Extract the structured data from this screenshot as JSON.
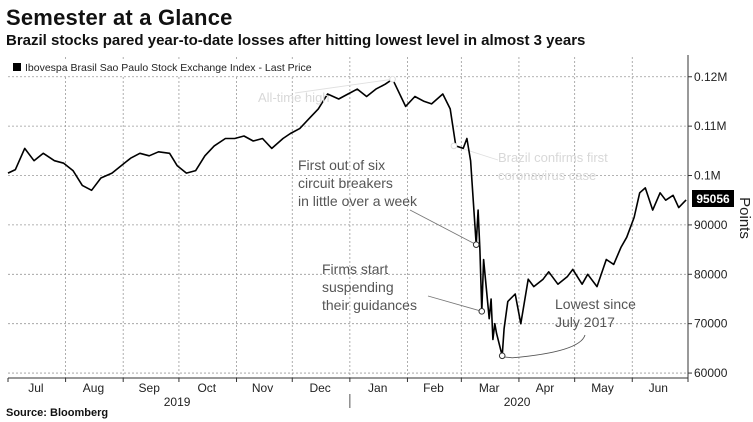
{
  "header": {
    "title": "Semester at a Glance",
    "subtitle": "Brazil stocks pared year-to-date losses after hitting lowest level in almost 3 years"
  },
  "footer": {
    "source": "Source: Bloomberg"
  },
  "chart_data": {
    "type": "line",
    "grid": true,
    "legend_position": "top-left",
    "series": [
      {
        "name": "Ibovespa Brasil Sao Paulo Stock Exchange Index - Last Price",
        "color": "#000000",
        "x": [
          "2019-07-01",
          "2019-07-05",
          "2019-07-10",
          "2019-07-15",
          "2019-07-20",
          "2019-07-26",
          "2019-07-31",
          "2019-08-05",
          "2019-08-10",
          "2019-08-15",
          "2019-08-20",
          "2019-08-26",
          "2019-08-31",
          "2019-09-05",
          "2019-09-10",
          "2019-09-15",
          "2019-09-20",
          "2019-09-26",
          "2019-09-30",
          "2019-10-05",
          "2019-10-10",
          "2019-10-15",
          "2019-10-20",
          "2019-10-26",
          "2019-10-31",
          "2019-11-05",
          "2019-11-10",
          "2019-11-15",
          "2019-11-20",
          "2019-11-26",
          "2019-11-30",
          "2019-12-05",
          "2019-12-10",
          "2019-12-15",
          "2019-12-20",
          "2019-12-26",
          "2019-12-31",
          "2020-01-05",
          "2020-01-10",
          "2020-01-15",
          "2020-01-20",
          "2020-01-24",
          "2020-01-31",
          "2020-02-05",
          "2020-02-10",
          "2020-02-14",
          "2020-02-20",
          "2020-02-24",
          "2020-02-27",
          "2020-03-02",
          "2020-03-04",
          "2020-03-06",
          "2020-03-09",
          "2020-03-10",
          "2020-03-11",
          "2020-03-12",
          "2020-03-13",
          "2020-03-16",
          "2020-03-17",
          "2020-03-18",
          "2020-03-19",
          "2020-03-20",
          "2020-03-23",
          "2020-03-24",
          "2020-03-26",
          "2020-03-30",
          "2020-04-02",
          "2020-04-06",
          "2020-04-09",
          "2020-04-14",
          "2020-04-17",
          "2020-04-22",
          "2020-04-27",
          "2020-04-30",
          "2020-05-05",
          "2020-05-08",
          "2020-05-13",
          "2020-05-18",
          "2020-05-22",
          "2020-05-26",
          "2020-05-29",
          "2020-06-02",
          "2020-06-05",
          "2020-06-08",
          "2020-06-12",
          "2020-06-16",
          "2020-06-19",
          "2020-06-23",
          "2020-06-26",
          "2020-06-30"
        ],
        "values": [
          100500,
          101200,
          105500,
          103000,
          104500,
          103000,
          102500,
          101000,
          98000,
          97000,
          99500,
          100500,
          102000,
          103500,
          104500,
          104000,
          104800,
          104500,
          102000,
          100500,
          101000,
          104000,
          106000,
          107500,
          107500,
          108000,
          107000,
          107500,
          105500,
          107500,
          108500,
          109500,
          111500,
          113500,
          116500,
          115500,
          116500,
          117500,
          116000,
          117500,
          118500,
          119500,
          114000,
          116000,
          115000,
          114500,
          116500,
          113500,
          106000,
          105500,
          107500,
          103000,
          86000,
          93000,
          85000,
          72500,
          83000,
          71000,
          75000,
          66800,
          70000,
          68000,
          63500,
          69000,
          74500,
          76000,
          70000,
          79000,
          77500,
          79000,
          80500,
          78000,
          79500,
          81000,
          78000,
          80000,
          77500,
          83000,
          82000,
          85500,
          87500,
          91500,
          96500,
          97500,
          93000,
          96500,
          95000,
          96000,
          93500,
          95056
        ]
      }
    ],
    "ylabel": "Points",
    "ylim": [
      59000,
      124000
    ],
    "y_ticks": [
      {
        "value": 60000,
        "label": "60000"
      },
      {
        "value": 70000,
        "label": "70000"
      },
      {
        "value": 80000,
        "label": "80000"
      },
      {
        "value": 90000,
        "label": "90000"
      },
      {
        "value": 100000,
        "label": "0.1M"
      },
      {
        "value": 110000,
        "label": "0.11M"
      },
      {
        "value": 120000,
        "label": "0.12M"
      }
    ],
    "x_month_labels": [
      {
        "date": "2019-07-16",
        "label": "Jul"
      },
      {
        "date": "2019-08-16",
        "label": "Aug"
      },
      {
        "date": "2019-09-15",
        "label": "Sep"
      },
      {
        "date": "2019-10-16",
        "label": "Oct"
      },
      {
        "date": "2019-11-15",
        "label": "Nov"
      },
      {
        "date": "2019-12-16",
        "label": "Dec"
      },
      {
        "date": "2020-01-16",
        "label": "Jan"
      },
      {
        "date": "2020-02-15",
        "label": "Feb"
      },
      {
        "date": "2020-03-16",
        "label": "Mar"
      },
      {
        "date": "2020-04-15",
        "label": "Apr"
      },
      {
        "date": "2020-05-16",
        "label": "May"
      },
      {
        "date": "2020-06-15",
        "label": "Jun"
      }
    ],
    "x_year_labels": [
      {
        "date": "2019-09-30",
        "label": "2019"
      },
      {
        "date": "2020-03-31",
        "label": "2020"
      }
    ],
    "last_value": {
      "value": 95056,
      "label": "95056"
    },
    "annotations": [
      {
        "lines": [
          "All-time high"
        ],
        "date": "2020-01-24",
        "value": 119500,
        "style": "faint"
      },
      {
        "lines": [
          "Brazil confirms first",
          "coronavirus case"
        ],
        "date": "2020-02-26",
        "value": 106000,
        "style": "faint"
      },
      {
        "lines": [
          "First out of six",
          "circuit breakers",
          "in little over a week"
        ],
        "date": "2020-03-09",
        "value": 86000,
        "style": "normal"
      },
      {
        "lines": [
          "Firms start",
          "suspending",
          "their guidances"
        ],
        "date": "2020-03-12",
        "value": 72500,
        "style": "normal"
      },
      {
        "lines": [
          "Lowest since",
          "July 2017"
        ],
        "date": "2020-03-23",
        "value": 63500,
        "style": "dark"
      }
    ]
  }
}
